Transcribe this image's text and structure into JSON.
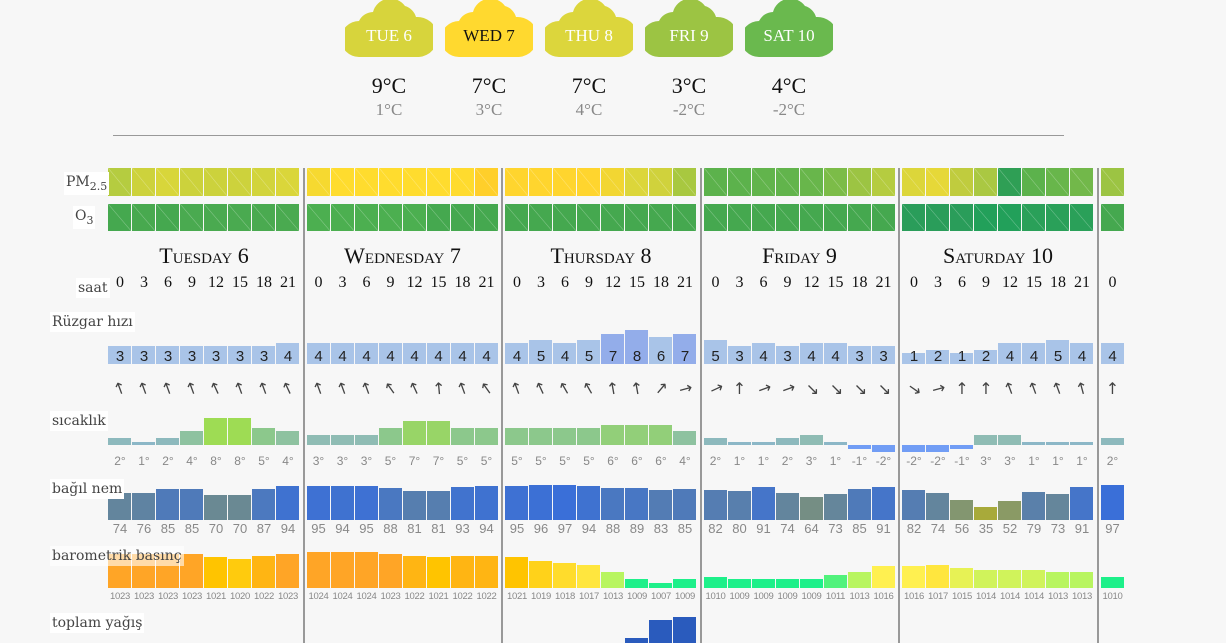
{
  "summary": [
    {
      "label": "TUE 6",
      "hi": "9°C",
      "lo": "1°C",
      "color": "#d7d43c",
      "text": "#ffffff"
    },
    {
      "label": "WED 7",
      "hi": "7°C",
      "lo": "3°C",
      "color": "#ffd92f",
      "text": "#111111"
    },
    {
      "label": "THU 8",
      "hi": "7°C",
      "lo": "4°C",
      "color": "#dcd63c",
      "text": "#ffffff"
    },
    {
      "label": "FRI 9",
      "hi": "3°C",
      "lo": "-2°C",
      "color": "#9cc443",
      "text": "#ffffff"
    },
    {
      "label": "SAT 10",
      "hi": "4°C",
      "lo": "-2°C",
      "color": "#6ab94e",
      "text": "#ffffff"
    }
  ],
  "labels": {
    "pm25_main": "PM",
    "pm25_sub": "2.5",
    "o3_main": "O",
    "o3_sub": "3",
    "hour": "saat",
    "wind": "Rüzgar hızı",
    "temp": "sıcaklık",
    "humidity": "bağıl nem",
    "pressure": "barometrik basınç",
    "precip": "toplam yağış"
  },
  "days": [
    {
      "title": "Tuesday 6",
      "hours": [
        "0",
        "3",
        "6",
        "9",
        "12",
        "15",
        "18",
        "21"
      ],
      "pm25": [
        "#b5cc40",
        "#cdd23c",
        "#d8d63a",
        "#ccd23c",
        "#ccd23c",
        "#cdd23c",
        "#d2d43c",
        "#dad63a"
      ],
      "o3": [
        "#45a84f",
        "#48a94f",
        "#45a84f",
        "#4aaa50",
        "#4aaa50",
        "#4aaa50",
        "#4aaa50",
        "#4aaa50"
      ],
      "wind": [
        3,
        3,
        3,
        3,
        3,
        3,
        3,
        4
      ],
      "wind_dir": [
        -20,
        -20,
        -20,
        -20,
        -25,
        -20,
        -20,
        -25
      ],
      "temp": [
        2,
        1,
        2,
        4,
        8,
        8,
        5,
        4
      ],
      "humidity": [
        74,
        76,
        85,
        85,
        70,
        70,
        87,
        94
      ],
      "pressure": [
        1023,
        1023,
        1023,
        1023,
        1021,
        1020,
        1022,
        1023
      ],
      "precip": [
        0,
        0,
        0,
        0,
        0,
        0,
        0,
        0
      ]
    },
    {
      "title": "Wednesday 7",
      "hours": [
        "0",
        "3",
        "6",
        "9",
        "12",
        "15",
        "18",
        "21"
      ],
      "pm25": [
        "#f6d930",
        "#ffdc2e",
        "#ffdc2e",
        "#ffdc2e",
        "#ffdc2e",
        "#ffdc2e",
        "#ffdb2e",
        "#ffcf2a"
      ],
      "o3": [
        "#4caf50",
        "#4caf50",
        "#4caf50",
        "#4caf50",
        "#4caf50",
        "#45a84f",
        "#45a84f",
        "#45a84f"
      ],
      "wind": [
        4,
        4,
        4,
        4,
        4,
        4,
        4,
        4
      ],
      "wind_dir": [
        -20,
        -20,
        -20,
        -35,
        -25,
        -5,
        -20,
        -35
      ],
      "temp": [
        3,
        3,
        3,
        5,
        7,
        7,
        5,
        5
      ],
      "humidity": [
        95,
        94,
        95,
        88,
        81,
        81,
        93,
        94
      ],
      "pressure": [
        1024,
        1024,
        1024,
        1023,
        1022,
        1021,
        1022,
        1022
      ],
      "precip": [
        0,
        0,
        0,
        0,
        0,
        0,
        0,
        0
      ]
    },
    {
      "title": "Thursday 8",
      "hours": [
        "0",
        "3",
        "6",
        "9",
        "12",
        "15",
        "18",
        "21"
      ],
      "pm25": [
        "#ffd52e",
        "#ffd52e",
        "#ffd52e",
        "#ffd52e",
        "#f2d632",
        "#dcd63a",
        "#d0d23c",
        "#a8c840"
      ],
      "o3": [
        "#45a84f",
        "#45a84f",
        "#45a84f",
        "#45a84f",
        "#45a84f",
        "#45a84f",
        "#45a84f",
        "#45a84f"
      ],
      "wind": [
        4,
        5,
        4,
        5,
        7,
        8,
        6,
        7
      ],
      "wind_dir": [
        -20,
        -25,
        -30,
        -30,
        -10,
        -10,
        40,
        75
      ],
      "temp": [
        5,
        5,
        5,
        5,
        6,
        6,
        6,
        4
      ],
      "humidity": [
        95,
        96,
        97,
        94,
        88,
        89,
        83,
        85
      ],
      "pressure": [
        1021,
        1019,
        1018,
        1017,
        1013,
        1009,
        1007,
        1009
      ],
      "precip": [
        0,
        0,
        0,
        0,
        0,
        0.2,
        2.5,
        3
      ]
    },
    {
      "title": "Friday 9",
      "hours": [
        "0",
        "3",
        "6",
        "9",
        "12",
        "15",
        "18",
        "21"
      ],
      "pm25": [
        "#5cb24c",
        "#5cb24c",
        "#62b44c",
        "#62b44c",
        "#68b64b",
        "#7cbc48",
        "#9cc443",
        "#b5cc40"
      ],
      "o3": [
        "#45a84f",
        "#45a84f",
        "#45a84f",
        "#45a84f",
        "#45a84f",
        "#45a84f",
        "#45a84f",
        "#45a84f"
      ],
      "wind": [
        5,
        3,
        4,
        3,
        4,
        4,
        3,
        3
      ],
      "wind_dir": [
        65,
        0,
        70,
        70,
        135,
        135,
        135,
        135
      ],
      "temp": [
        2,
        1,
        1,
        2,
        3,
        1,
        -1,
        -2
      ],
      "humidity": [
        82,
        80,
        91,
        74,
        64,
        73,
        85,
        91
      ],
      "pressure": [
        1010,
        1009,
        1009,
        1009,
        1009,
        1011,
        1013,
        1016
      ],
      "precip": [
        0,
        0,
        0,
        0,
        0,
        0,
        0,
        0
      ]
    },
    {
      "title": "Saturday 10",
      "hours": [
        "0",
        "3",
        "6",
        "9",
        "12",
        "15",
        "18",
        "21"
      ],
      "pm25": [
        "#dcd63a",
        "#e6d838",
        "#c0cc3e",
        "#aac842",
        "#2f9f55",
        "#5cb24c",
        "#68b64b",
        "#72b84a"
      ],
      "o3": [
        "#2a9d5a",
        "#2a9d5a",
        "#2a9d5a",
        "#22a05a",
        "#22a05a",
        "#2aa059",
        "#2aa059",
        "#2aa059"
      ],
      "wind": [
        1,
        2,
        1,
        2,
        4,
        4,
        5,
        4
      ],
      "wind_dir": [
        125,
        75,
        0,
        0,
        -20,
        -20,
        -20,
        -15
      ],
      "temp": [
        -2,
        -2,
        -1,
        3,
        3,
        1,
        1,
        1
      ],
      "humidity": [
        82,
        74,
        56,
        35,
        52,
        79,
        73,
        91
      ],
      "pressure": [
        1016,
        1017,
        1015,
        1014,
        1014,
        1014,
        1013,
        1013
      ],
      "precip": [
        0,
        0,
        0,
        0,
        0,
        0,
        0,
        0
      ]
    },
    {
      "title": "",
      "hours": [
        "0"
      ],
      "pm25": [
        "#9cc443"
      ],
      "o3": [
        "#45a84f"
      ],
      "wind": [
        4
      ],
      "wind_dir": [
        0
      ],
      "temp": [
        2
      ],
      "humidity": [
        97
      ],
      "pressure": [
        1010
      ],
      "precip": [
        0
      ]
    }
  ]
}
